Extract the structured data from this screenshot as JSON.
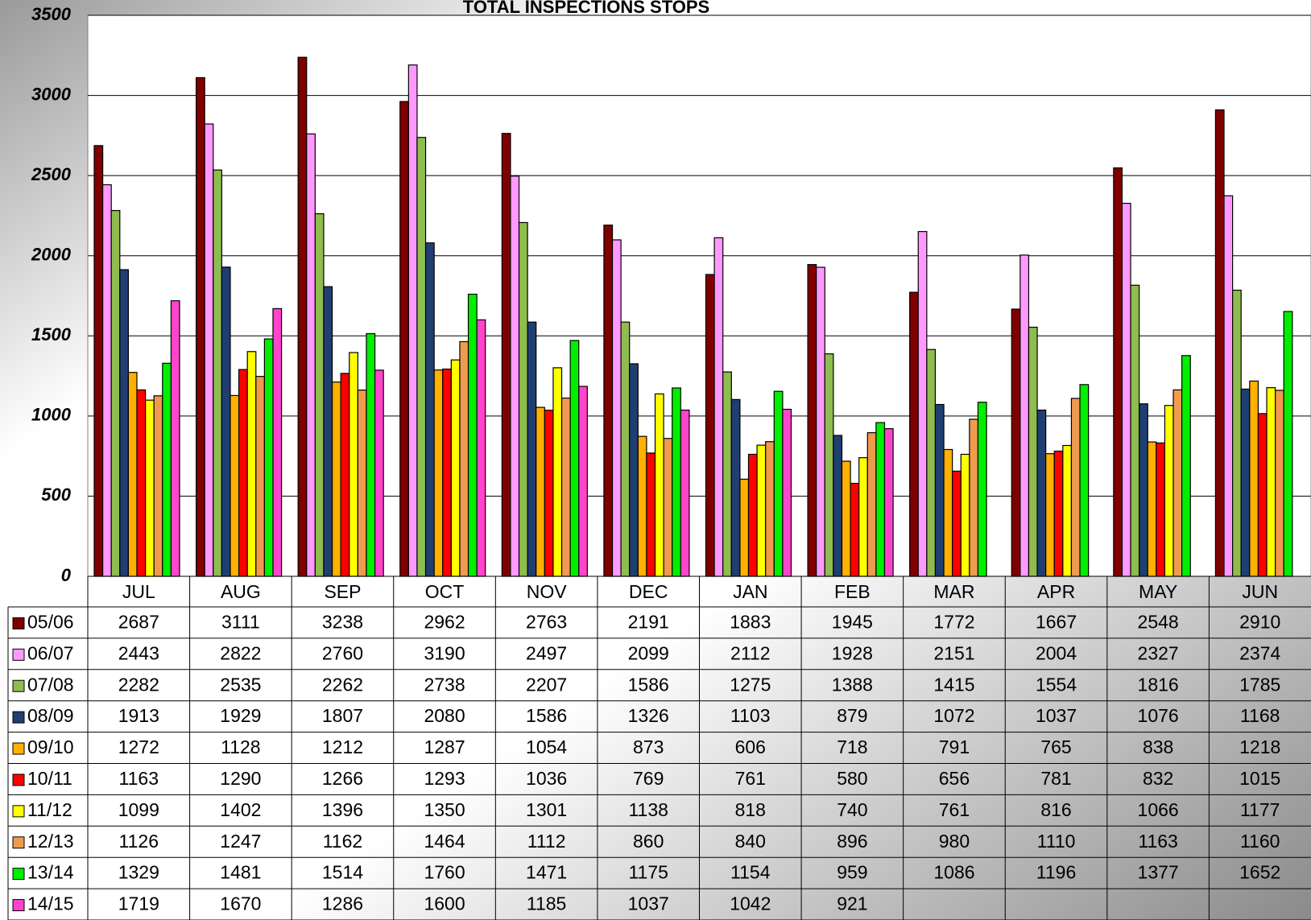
{
  "chart_data": {
    "type": "bar",
    "title": "TOTAL INSPECTIONS STOPS",
    "categories": [
      "JUL",
      "AUG",
      "SEP",
      "OCT",
      "NOV",
      "DEC",
      "JAN",
      "FEB",
      "MAR",
      "APR",
      "MAY",
      "JUN"
    ],
    "series": [
      {
        "name": "05/06",
        "color": "#800000",
        "values": [
          2687,
          3111,
          3238,
          2962,
          2763,
          2191,
          1883,
          1945,
          1772,
          1667,
          2548,
          2910
        ]
      },
      {
        "name": "06/07",
        "color": "#ff99ff",
        "values": [
          2443,
          2822,
          2760,
          3190,
          2497,
          2099,
          2112,
          1928,
          2151,
          2004,
          2327,
          2374
        ]
      },
      {
        "name": "07/08",
        "color": "#8fbc4f",
        "values": [
          2282,
          2535,
          2262,
          2738,
          2207,
          1586,
          1275,
          1388,
          1415,
          1554,
          1816,
          1785
        ]
      },
      {
        "name": "08/09",
        "color": "#1f3f73",
        "values": [
          1913,
          1929,
          1807,
          2080,
          1586,
          1326,
          1103,
          879,
          1072,
          1037,
          1076,
          1168
        ]
      },
      {
        "name": "09/10",
        "color": "#ffb000",
        "values": [
          1272,
          1128,
          1212,
          1287,
          1054,
          873,
          606,
          718,
          791,
          765,
          838,
          1218
        ]
      },
      {
        "name": "10/11",
        "color": "#ff0000",
        "values": [
          1163,
          1290,
          1266,
          1293,
          1036,
          769,
          761,
          580,
          656,
          781,
          832,
          1015
        ]
      },
      {
        "name": "11/12",
        "color": "#ffff00",
        "values": [
          1099,
          1402,
          1396,
          1350,
          1301,
          1138,
          818,
          740,
          761,
          816,
          1066,
          1177
        ]
      },
      {
        "name": "12/13",
        "color": "#f09a50",
        "values": [
          1126,
          1247,
          1162,
          1464,
          1112,
          860,
          840,
          896,
          980,
          1110,
          1163,
          1160
        ]
      },
      {
        "name": "13/14",
        "color": "#00ee00",
        "values": [
          1329,
          1481,
          1514,
          1760,
          1471,
          1175,
          1154,
          959,
          1086,
          1196,
          1377,
          1652
        ]
      },
      {
        "name": "14/15",
        "color": "#ff44cc",
        "values": [
          1719,
          1670,
          1286,
          1600,
          1185,
          1037,
          1042,
          921,
          null,
          null,
          null,
          null
        ]
      }
    ],
    "ylim": [
      0,
      3500
    ],
    "yticks": [
      0,
      500,
      1000,
      1500,
      2000,
      2500,
      3000,
      3500
    ],
    "grid": true,
    "data_table": true
  }
}
